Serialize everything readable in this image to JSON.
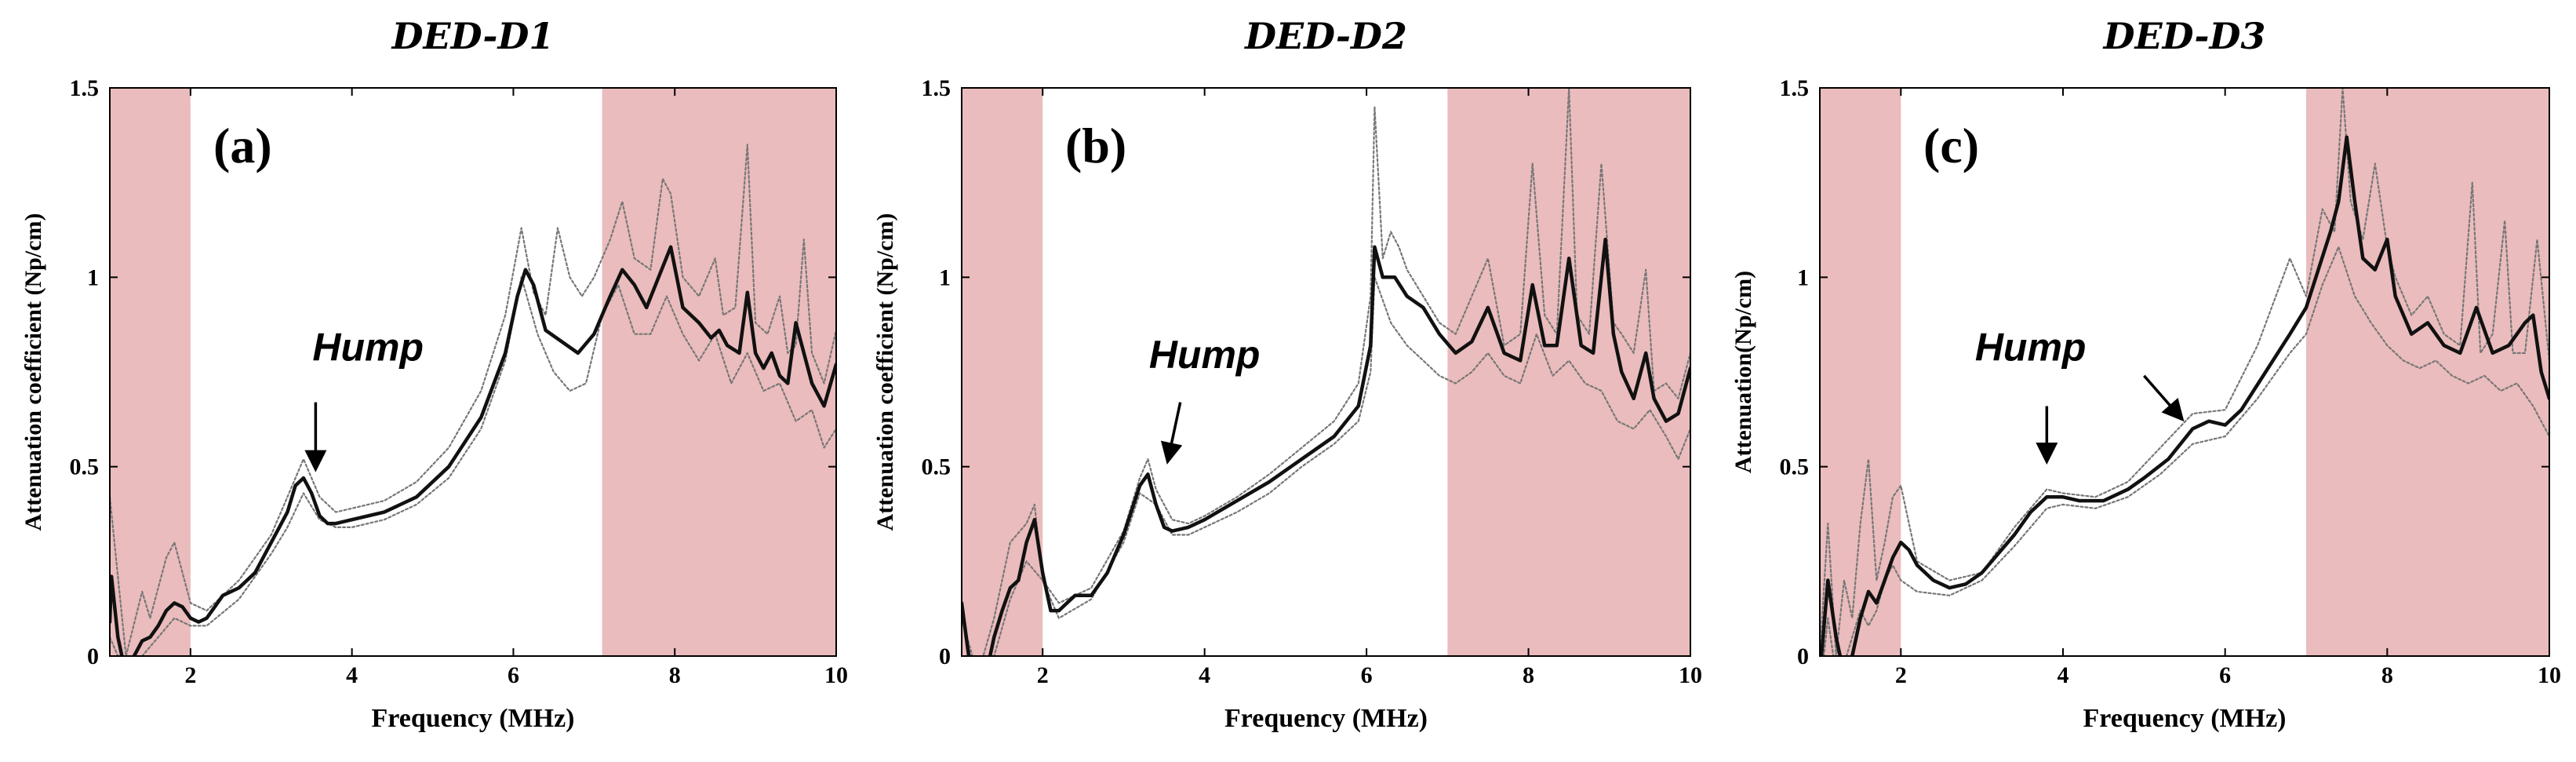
{
  "colors": {
    "shade": "#ebbcbd",
    "mean_line": "#111111",
    "bound_line": "#777777"
  },
  "chart_data": [
    {
      "type": "line",
      "title": "DED-D1",
      "panel_label": "(a)",
      "xlabel": "Frequency (MHz)",
      "ylabel": "Attenuation coefficient (Np/cm)",
      "xlim": [
        1,
        10
      ],
      "ylim": [
        0,
        1.5
      ],
      "xticks": [
        "2",
        "4",
        "6",
        "8",
        "10"
      ],
      "yticks": [
        "0",
        "0.5",
        "1",
        "1.5"
      ],
      "shaded_ranges": [
        [
          1,
          2
        ],
        [
          7.1,
          10
        ]
      ],
      "annotation": {
        "text": "Hump",
        "text_pos": [
          4.2,
          0.78
        ],
        "arrows": [
          {
            "from": [
              3.55,
              0.67
            ],
            "to": [
              3.55,
              0.5
            ]
          }
        ]
      },
      "series": [
        {
          "name": "mean",
          "style": "solid",
          "x": [
            1.0,
            1.02,
            1.1,
            1.2,
            1.3,
            1.4,
            1.5,
            1.6,
            1.7,
            1.8,
            1.9,
            2.0,
            2.1,
            2.2,
            2.3,
            2.4,
            2.6,
            2.8,
            3.0,
            3.1,
            3.2,
            3.3,
            3.4,
            3.5,
            3.6,
            3.7,
            3.8,
            4.0,
            4.4,
            4.8,
            5.2,
            5.6,
            5.9,
            6.05,
            6.15,
            6.25,
            6.4,
            6.6,
            6.8,
            7.0,
            7.2,
            7.35,
            7.5,
            7.65,
            7.8,
            7.95,
            8.1,
            8.3,
            8.45,
            8.55,
            8.65,
            8.8,
            8.9,
            9.0,
            9.1,
            9.2,
            9.3,
            9.4,
            9.5,
            9.55,
            9.7,
            9.85,
            10.0
          ],
          "y": [
            0.09,
            0.21,
            0.05,
            -0.05,
            0.0,
            0.04,
            0.05,
            0.08,
            0.12,
            0.14,
            0.13,
            0.1,
            0.09,
            0.1,
            0.13,
            0.16,
            0.18,
            0.22,
            0.3,
            0.34,
            0.38,
            0.45,
            0.47,
            0.43,
            0.37,
            0.35,
            0.35,
            0.36,
            0.38,
            0.42,
            0.5,
            0.63,
            0.8,
            0.95,
            1.02,
            0.98,
            0.86,
            0.83,
            0.8,
            0.85,
            0.95,
            1.02,
            0.98,
            0.92,
            1.0,
            1.08,
            0.92,
            0.88,
            0.84,
            0.86,
            0.82,
            0.8,
            0.96,
            0.8,
            0.76,
            0.8,
            0.74,
            0.72,
            0.88,
            0.84,
            0.72,
            0.66,
            0.77
          ]
        },
        {
          "name": "upper",
          "style": "dotted",
          "x": [
            1.0,
            1.2,
            1.4,
            1.5,
            1.6,
            1.7,
            1.8,
            1.9,
            2.0,
            2.2,
            2.6,
            3.0,
            3.2,
            3.4,
            3.6,
            3.8,
            4.0,
            4.4,
            4.8,
            5.2,
            5.6,
            5.9,
            6.1,
            6.25,
            6.4,
            6.55,
            6.7,
            6.85,
            7.0,
            7.2,
            7.35,
            7.5,
            7.7,
            7.85,
            7.95,
            8.1,
            8.3,
            8.5,
            8.6,
            8.75,
            8.9,
            9.0,
            9.15,
            9.3,
            9.4,
            9.5,
            9.6,
            9.7,
            9.85,
            10.0
          ],
          "y": [
            0.42,
            0.0,
            0.17,
            0.1,
            0.18,
            0.26,
            0.3,
            0.22,
            0.14,
            0.12,
            0.2,
            0.32,
            0.42,
            0.52,
            0.42,
            0.38,
            0.39,
            0.41,
            0.46,
            0.55,
            0.7,
            0.9,
            1.13,
            0.96,
            0.9,
            1.13,
            1.0,
            0.95,
            1.0,
            1.1,
            1.2,
            1.05,
            1.02,
            1.26,
            1.22,
            1.0,
            0.95,
            1.05,
            0.9,
            0.92,
            1.35,
            0.88,
            0.85,
            0.95,
            0.8,
            0.82,
            1.1,
            0.8,
            0.72,
            0.86
          ]
        },
        {
          "name": "lower",
          "style": "dotted",
          "x": [
            1.0,
            1.2,
            1.4,
            1.6,
            1.8,
            2.0,
            2.2,
            2.6,
            3.0,
            3.2,
            3.4,
            3.6,
            3.8,
            4.0,
            4.4,
            4.8,
            5.2,
            5.6,
            5.9,
            6.1,
            6.3,
            6.5,
            6.7,
            6.9,
            7.1,
            7.3,
            7.5,
            7.7,
            7.9,
            8.1,
            8.3,
            8.5,
            8.7,
            8.9,
            9.1,
            9.3,
            9.5,
            9.7,
            9.85,
            10.0
          ],
          "y": [
            0.05,
            -0.05,
            0.0,
            0.05,
            0.1,
            0.08,
            0.08,
            0.15,
            0.27,
            0.34,
            0.43,
            0.36,
            0.34,
            0.34,
            0.36,
            0.4,
            0.47,
            0.6,
            0.78,
            1.0,
            0.85,
            0.75,
            0.7,
            0.72,
            0.9,
            0.98,
            0.85,
            0.85,
            0.95,
            0.85,
            0.78,
            0.85,
            0.72,
            0.8,
            0.7,
            0.72,
            0.62,
            0.65,
            0.55,
            0.6
          ]
        }
      ]
    },
    {
      "type": "line",
      "title": "DED-D2",
      "panel_label": "(b)",
      "xlabel": "Frequency (MHz)",
      "ylabel": "Attenuation coefficient (Np/cm)",
      "xlim": [
        1,
        10
      ],
      "ylim": [
        0,
        1.5
      ],
      "xticks": [
        "2",
        "4",
        "6",
        "8",
        "10"
      ],
      "yticks": [
        "0",
        "0.5",
        "1",
        "1.5"
      ],
      "shaded_ranges": [
        [
          1,
          2
        ],
        [
          7.0,
          10
        ]
      ],
      "annotation": {
        "text": "Hump",
        "text_pos": [
          4.0,
          0.76
        ],
        "arrows": [
          {
            "from": [
              3.7,
              0.67
            ],
            "to": [
              3.55,
              0.52
            ]
          }
        ]
      },
      "series": [
        {
          "name": "mean",
          "style": "solid",
          "x": [
            1.0,
            1.1,
            1.2,
            1.3,
            1.4,
            1.5,
            1.6,
            1.7,
            1.8,
            1.9,
            2.0,
            2.1,
            2.2,
            2.4,
            2.6,
            2.8,
            3.0,
            3.2,
            3.3,
            3.4,
            3.5,
            3.6,
            3.8,
            4.0,
            4.4,
            4.8,
            5.2,
            5.6,
            5.9,
            6.05,
            6.1,
            6.2,
            6.35,
            6.5,
            6.7,
            6.9,
            7.1,
            7.3,
            7.5,
            7.7,
            7.9,
            8.05,
            8.2,
            8.35,
            8.5,
            8.65,
            8.8,
            8.95,
            9.05,
            9.15,
            9.3,
            9.45,
            9.55,
            9.7,
            9.85,
            10.0
          ],
          "y": [
            0.14,
            -0.02,
            -0.1,
            -0.05,
            0.05,
            0.12,
            0.18,
            0.2,
            0.3,
            0.36,
            0.22,
            0.12,
            0.12,
            0.16,
            0.16,
            0.22,
            0.32,
            0.45,
            0.48,
            0.4,
            0.34,
            0.33,
            0.34,
            0.36,
            0.41,
            0.46,
            0.52,
            0.58,
            0.66,
            0.82,
            1.08,
            1.0,
            1.0,
            0.95,
            0.92,
            0.85,
            0.8,
            0.83,
            0.92,
            0.8,
            0.78,
            0.98,
            0.82,
            0.82,
            1.05,
            0.82,
            0.8,
            1.1,
            0.85,
            0.75,
            0.68,
            0.8,
            0.68,
            0.62,
            0.64,
            0.76
          ]
        },
        {
          "name": "upper",
          "style": "dotted",
          "x": [
            1.0,
            1.2,
            1.4,
            1.6,
            1.8,
            1.9,
            2.0,
            2.2,
            2.6,
            3.0,
            3.2,
            3.3,
            3.4,
            3.6,
            3.8,
            4.0,
            4.4,
            4.8,
            5.2,
            5.6,
            5.9,
            6.05,
            6.1,
            6.2,
            6.3,
            6.4,
            6.5,
            6.7,
            6.9,
            7.1,
            7.3,
            7.5,
            7.7,
            7.9,
            8.05,
            8.2,
            8.35,
            8.5,
            8.6,
            8.75,
            8.9,
            9.05,
            9.15,
            9.3,
            9.45,
            9.55,
            9.7,
            9.85,
            10.0
          ],
          "y": [
            0.1,
            -0.05,
            0.1,
            0.3,
            0.35,
            0.4,
            0.2,
            0.14,
            0.18,
            0.33,
            0.47,
            0.52,
            0.44,
            0.36,
            0.35,
            0.37,
            0.42,
            0.48,
            0.55,
            0.62,
            0.72,
            0.95,
            1.45,
            1.05,
            1.12,
            1.08,
            1.02,
            0.95,
            0.88,
            0.85,
            0.95,
            1.05,
            0.82,
            0.85,
            1.3,
            0.9,
            0.85,
            1.5,
            0.9,
            0.85,
            1.3,
            0.88,
            0.85,
            0.8,
            1.02,
            0.7,
            0.72,
            0.68,
            0.8
          ]
        },
        {
          "name": "lower",
          "style": "dotted",
          "x": [
            1.0,
            1.2,
            1.4,
            1.6,
            1.8,
            2.0,
            2.2,
            2.6,
            3.0,
            3.2,
            3.4,
            3.6,
            3.8,
            4.0,
            4.4,
            4.8,
            5.2,
            5.6,
            5.9,
            6.05,
            6.1,
            6.3,
            6.5,
            6.7,
            6.9,
            7.1,
            7.3,
            7.5,
            7.7,
            7.9,
            8.1,
            8.3,
            8.5,
            8.7,
            8.9,
            9.1,
            9.3,
            9.5,
            9.7,
            9.85,
            10.0
          ],
          "y": [
            0.1,
            -0.08,
            0.0,
            0.15,
            0.25,
            0.2,
            0.1,
            0.15,
            0.3,
            0.43,
            0.4,
            0.32,
            0.32,
            0.34,
            0.38,
            0.43,
            0.5,
            0.56,
            0.62,
            0.75,
            1.0,
            0.88,
            0.82,
            0.78,
            0.74,
            0.72,
            0.75,
            0.8,
            0.74,
            0.72,
            0.85,
            0.74,
            0.78,
            0.72,
            0.7,
            0.62,
            0.6,
            0.65,
            0.58,
            0.52,
            0.6
          ]
        }
      ]
    },
    {
      "type": "line",
      "title": "DED-D3",
      "panel_label": "(c)",
      "xlabel": "Frequency (MHz)",
      "ylabel": "Attenuation(Np/cm)",
      "xlim": [
        1,
        10
      ],
      "ylim": [
        0,
        1.5
      ],
      "xticks": [
        "2",
        "4",
        "6",
        "8",
        "10"
      ],
      "yticks": [
        "0",
        "0.5",
        "1",
        "1.5"
      ],
      "shaded_ranges": [
        [
          1,
          2
        ],
        [
          7.0,
          10
        ]
      ],
      "annotation": {
        "text": "Hump",
        "text_pos": [
          3.6,
          0.78
        ],
        "arrows": [
          {
            "from": [
              3.8,
              0.66
            ],
            "to": [
              3.8,
              0.52
            ]
          },
          {
            "from": [
              5.0,
              0.74
            ],
            "to": [
              5.45,
              0.63
            ]
          }
        ]
      },
      "series": [
        {
          "name": "mean",
          "style": "solid",
          "x": [
            1.0,
            1.1,
            1.2,
            1.3,
            1.4,
            1.5,
            1.6,
            1.7,
            1.8,
            1.9,
            2.0,
            2.1,
            2.2,
            2.4,
            2.6,
            2.8,
            3.0,
            3.2,
            3.4,
            3.6,
            3.8,
            4.0,
            4.2,
            4.5,
            4.8,
            5.0,
            5.3,
            5.6,
            5.8,
            6.0,
            6.2,
            6.5,
            6.8,
            7.0,
            7.15,
            7.3,
            7.4,
            7.5,
            7.6,
            7.7,
            7.85,
            8.0,
            8.1,
            8.3,
            8.5,
            8.7,
            8.9,
            9.1,
            9.3,
            9.5,
            9.7,
            9.8,
            9.9,
            10.0
          ],
          "y": [
            -0.05,
            0.2,
            0.05,
            -0.05,
            0.0,
            0.1,
            0.17,
            0.14,
            0.2,
            0.26,
            0.3,
            0.28,
            0.24,
            0.2,
            0.18,
            0.19,
            0.22,
            0.27,
            0.32,
            0.38,
            0.42,
            0.42,
            0.41,
            0.41,
            0.44,
            0.47,
            0.52,
            0.6,
            0.62,
            0.61,
            0.65,
            0.75,
            0.85,
            0.92,
            1.02,
            1.12,
            1.2,
            1.37,
            1.2,
            1.05,
            1.02,
            1.1,
            0.95,
            0.85,
            0.88,
            0.82,
            0.8,
            0.92,
            0.8,
            0.82,
            0.88,
            0.9,
            0.75,
            0.68
          ]
        },
        {
          "name": "upper",
          "style": "dotted",
          "x": [
            1.0,
            1.1,
            1.2,
            1.3,
            1.4,
            1.5,
            1.6,
            1.7,
            1.8,
            1.9,
            2.0,
            2.2,
            2.6,
            3.0,
            3.4,
            3.8,
            4.0,
            4.4,
            4.8,
            5.2,
            5.6,
            6.0,
            6.4,
            6.8,
            7.0,
            7.2,
            7.35,
            7.45,
            7.55,
            7.7,
            7.85,
            8.0,
            8.1,
            8.3,
            8.5,
            8.7,
            8.9,
            9.05,
            9.15,
            9.3,
            9.45,
            9.55,
            9.7,
            9.85,
            10.0
          ],
          "y": [
            0.0,
            0.35,
            0.0,
            0.2,
            0.1,
            0.35,
            0.52,
            0.2,
            0.3,
            0.42,
            0.45,
            0.25,
            0.2,
            0.22,
            0.34,
            0.44,
            0.43,
            0.42,
            0.46,
            0.55,
            0.64,
            0.65,
            0.82,
            1.05,
            0.95,
            1.18,
            1.12,
            1.5,
            1.2,
            1.1,
            1.3,
            1.08,
            1.0,
            0.9,
            0.95,
            0.85,
            0.82,
            1.25,
            0.8,
            0.85,
            1.15,
            0.8,
            0.8,
            1.1,
            0.78
          ]
        },
        {
          "name": "lower",
          "style": "dotted",
          "x": [
            1.0,
            1.1,
            1.2,
            1.3,
            1.4,
            1.5,
            1.6,
            1.7,
            1.8,
            1.9,
            2.0,
            2.2,
            2.6,
            3.0,
            3.4,
            3.8,
            4.0,
            4.4,
            4.8,
            5.2,
            5.6,
            6.0,
            6.4,
            6.8,
            7.0,
            7.2,
            7.4,
            7.6,
            7.8,
            8.0,
            8.2,
            8.4,
            8.6,
            8.8,
            9.0,
            9.2,
            9.4,
            9.6,
            9.8,
            10.0
          ],
          "y": [
            -0.1,
            0.1,
            -0.05,
            -0.02,
            0.05,
            0.12,
            0.08,
            0.12,
            0.2,
            0.24,
            0.2,
            0.17,
            0.16,
            0.2,
            0.29,
            0.39,
            0.4,
            0.39,
            0.42,
            0.48,
            0.56,
            0.58,
            0.68,
            0.8,
            0.85,
            0.98,
            1.08,
            0.95,
            0.88,
            0.82,
            0.78,
            0.76,
            0.78,
            0.74,
            0.72,
            0.74,
            0.7,
            0.72,
            0.66,
            0.58
          ]
        }
      ]
    }
  ]
}
